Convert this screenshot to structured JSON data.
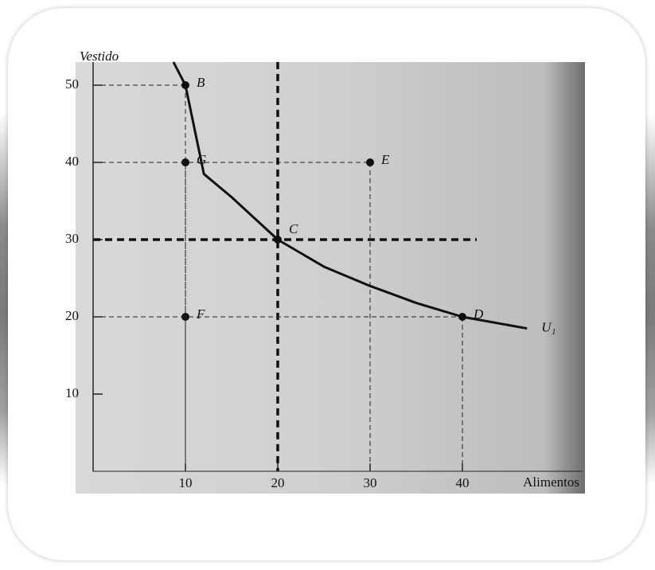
{
  "chart_data": {
    "type": "line",
    "y_label": "Vestido",
    "x_label": "Alimentos",
    "xlim": [
      0,
      53
    ],
    "ylim": [
      0,
      53
    ],
    "xticks": [
      10,
      20,
      30,
      40
    ],
    "yticks": [
      10,
      20,
      30,
      40,
      50
    ],
    "series": [
      {
        "name": "U₁",
        "color": "#111111",
        "x": [
          8.7,
          10,
          12,
          15,
          20,
          25,
          30,
          35,
          40,
          47
        ],
        "values": [
          53,
          50,
          38.5,
          35.5,
          30,
          26.5,
          24,
          21.8,
          20,
          18.5
        ]
      }
    ],
    "points": {
      "labels": [
        "B",
        "G",
        "E",
        "C",
        "F",
        "D"
      ],
      "x": [
        10,
        10,
        30,
        20,
        10,
        40
      ],
      "y": [
        50,
        40,
        40,
        30,
        20,
        20
      ]
    }
  }
}
